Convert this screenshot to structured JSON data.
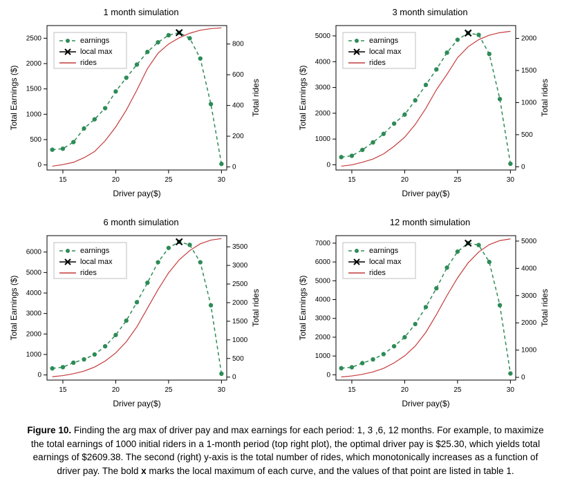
{
  "global": {
    "xlabel": "Driver pay($)",
    "ylabel_left": "Total Earnings ($)",
    "ylabel_right": "Total rides",
    "legend": {
      "earnings": "earnings",
      "localmax": "local max",
      "rides": "rides"
    },
    "colors": {
      "earnings": "#2e8b57",
      "localmax": "#000000",
      "rides": "#c43a3a",
      "axis": "#000000",
      "grid": "#e8e8e8",
      "bg": "#ffffff"
    },
    "font": {
      "axis_label": 12,
      "tick": 10,
      "title": 13,
      "legend": 11
    },
    "x": [
      14,
      15,
      16,
      17,
      18,
      19,
      20,
      21,
      22,
      23,
      24,
      25,
      26,
      27,
      28,
      29,
      30
    ],
    "x_ticks": [
      15,
      20,
      25,
      30
    ],
    "xlim": [
      13.5,
      30.5
    ],
    "earnings_line": {
      "dash": "5,4",
      "width": 1.5,
      "marker_r": 3.2
    },
    "rides_line": {
      "width": 1.2
    },
    "localmax_marker": {
      "size": 9,
      "stroke": 2.2
    }
  },
  "panels": [
    {
      "id": "p1",
      "title": "1 month simulation",
      "earnings": [
        300,
        320,
        450,
        720,
        900,
        1120,
        1450,
        1720,
        1980,
        2230,
        2420,
        2560,
        2610,
        2500,
        2100,
        1200,
        20
      ],
      "rides": [
        5,
        15,
        30,
        60,
        100,
        170,
        260,
        370,
        500,
        640,
        740,
        800,
        840,
        870,
        890,
        900,
        905
      ],
      "local_max_x": 26,
      "y_left": {
        "lim": [
          -100,
          2750
        ],
        "ticks": [
          0,
          500,
          1000,
          1500,
          2000,
          2500
        ]
      },
      "y_right": {
        "lim": [
          -20,
          920
        ],
        "ticks": [
          0,
          200,
          400,
          600,
          800
        ]
      }
    },
    {
      "id": "p3",
      "title": "3 month simulation",
      "earnings": [
        300,
        350,
        580,
        870,
        1200,
        1600,
        1950,
        2500,
        3100,
        3700,
        4350,
        4850,
        5110,
        5040,
        4300,
        2550,
        40
      ],
      "rides": [
        10,
        30,
        70,
        120,
        200,
        320,
        460,
        660,
        910,
        1200,
        1440,
        1700,
        1870,
        1980,
        2050,
        2090,
        2110
      ],
      "local_max_x": 26,
      "y_left": {
        "lim": [
          -200,
          5400
        ],
        "ticks": [
          0,
          1000,
          2000,
          3000,
          4000,
          5000
        ]
      },
      "y_right": {
        "lim": [
          -50,
          2200
        ],
        "ticks": [
          0,
          500,
          1000,
          1500,
          2000
        ]
      }
    },
    {
      "id": "p6",
      "title": "6 month simulation",
      "earnings": [
        320,
        380,
        600,
        760,
        1000,
        1400,
        1950,
        2650,
        3550,
        4500,
        5500,
        6200,
        6500,
        6350,
        5500,
        3400,
        60
      ],
      "rides": [
        10,
        40,
        90,
        160,
        270,
        430,
        650,
        950,
        1350,
        1850,
        2350,
        2800,
        3150,
        3400,
        3580,
        3680,
        3720
      ],
      "local_max_x": 26,
      "y_left": {
        "lim": [
          -250,
          6800
        ],
        "ticks": [
          0,
          1000,
          2000,
          3000,
          4000,
          5000,
          6000
        ]
      },
      "y_right": {
        "lim": [
          -80,
          3800
        ],
        "ticks": [
          0,
          500,
          1000,
          1500,
          2000,
          2500,
          3000,
          3500
        ]
      }
    },
    {
      "id": "p12",
      "title": "12 month simulation",
      "earnings": [
        350,
        400,
        620,
        820,
        1100,
        1520,
        2000,
        2700,
        3600,
        4600,
        5700,
        6550,
        7000,
        6900,
        6000,
        3700,
        70
      ],
      "rides": [
        15,
        50,
        110,
        200,
        330,
        530,
        790,
        1150,
        1650,
        2300,
        3000,
        3650,
        4200,
        4600,
        4870,
        5020,
        5080
      ],
      "local_max_x": 26,
      "y_left": {
        "lim": [
          -280,
          7400
        ],
        "ticks": [
          0,
          1000,
          2000,
          3000,
          4000,
          5000,
          6000,
          7000
        ]
      },
      "y_right": {
        "lim": [
          -100,
          5200
        ],
        "ticks": [
          0,
          1000,
          2000,
          3000,
          4000,
          5000
        ]
      }
    }
  ],
  "caption": {
    "fig_label": "Figure 10.",
    "text": " Finding the arg max of driver pay and max earnings for each period: 1, 3 ,6, 12 months. For example, to maximize the total earnings of 1000 initial riders in a 1-month period (top right plot), the optimal driver pay is $25.30, which yields total earnings of $2609.38. The second (right) y-axis is the total number of rides, which monotonically increases as a function of driver pay. The bold ",
    "bold_x": "x",
    "text2": " marks the local maximum of each curve, and the values of that point are listed in table 1."
  }
}
